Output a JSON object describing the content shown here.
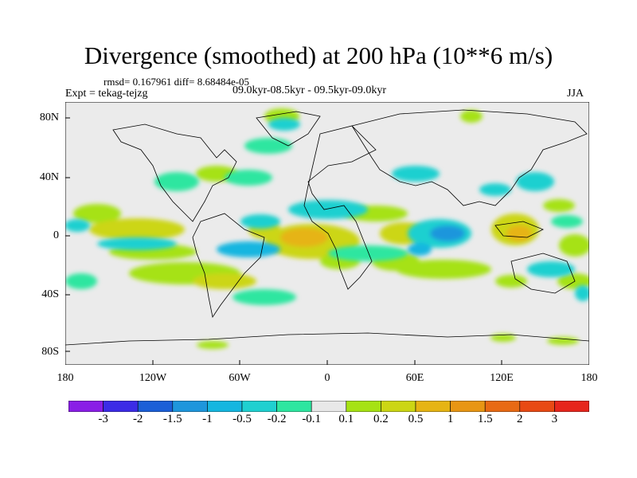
{
  "title": "Divergence (smoothed) at 200 hPa (10**6 m/s)",
  "stats": "rmsd= 0.167961 diff= 8.68484e-05",
  "expt": "Expt = tekag-tejzg",
  "period": "09.0kyr-08.5kyr - 09.5kyr-09.0kyr",
  "season": "JJA",
  "map": {
    "lat_labels": [
      "80N",
      "40N",
      "0",
      "40S",
      "80S"
    ],
    "lon_labels": [
      "180",
      "120W",
      "60W",
      "0",
      "60E",
      "120E",
      "180"
    ],
    "land_color": "#ebebeb",
    "coast_color": "#000000"
  },
  "colorbar": {
    "labels": [
      "-3",
      "-2",
      "-1.5",
      "-1",
      "-0.5",
      "-0.2",
      "-0.1",
      "0.1",
      "0.2",
      "0.5",
      "1",
      "1.5",
      "2",
      "3"
    ],
    "colors": [
      "#8a1ee6",
      "#3c2ce6",
      "#1b5fd7",
      "#1e96dc",
      "#15b6e0",
      "#1fd0d0",
      "#2ee6a0",
      "#e8e8e8",
      "#a6e214",
      "#ccd614",
      "#e6b414",
      "#e89614",
      "#e86a14",
      "#e84a14",
      "#e6261c"
    ]
  }
}
